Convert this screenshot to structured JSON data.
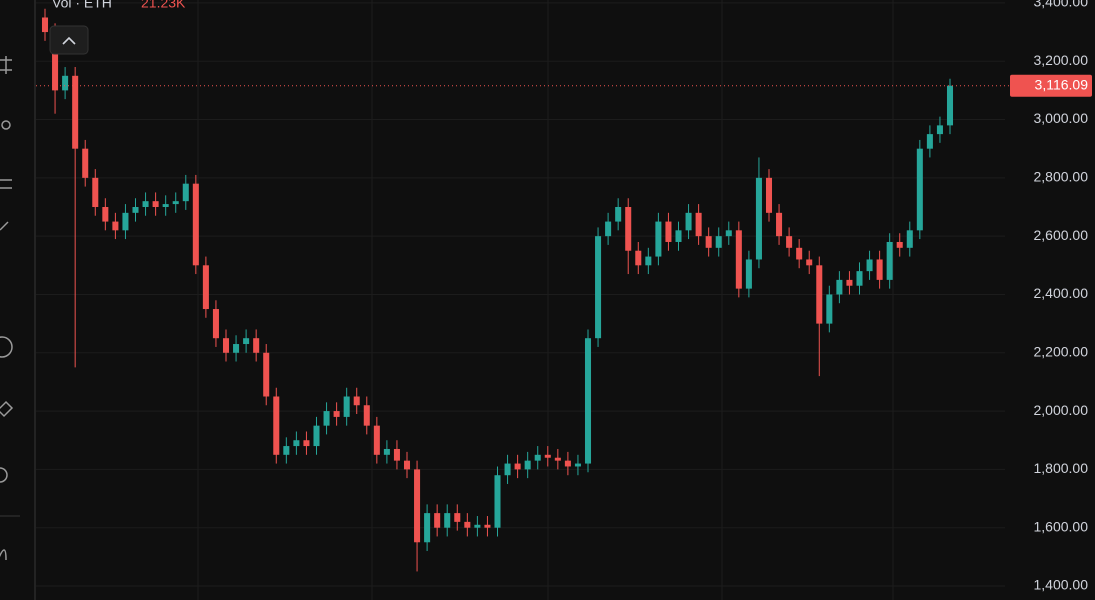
{
  "chart_data": {
    "type": "candlestick",
    "volume_title": "Vol · ETH",
    "volume_value": "21.23K",
    "open": [
      3350,
      3300,
      3100,
      3150,
      2900,
      2800,
      2700,
      2650,
      2620,
      2680,
      2700,
      2720,
      2700,
      2710,
      2720,
      2780,
      2500,
      2350,
      2250,
      2200,
      2230,
      2250,
      2200,
      2050,
      1850,
      1880,
      1900,
      1880,
      1950,
      2000,
      1980,
      2050,
      2020,
      1950,
      1850,
      1870,
      1830,
      1800,
      1550,
      1650,
      1600,
      1650,
      1620,
      1600,
      1610,
      1600,
      1780,
      1820,
      1800,
      1830,
      1850,
      1840,
      1830,
      1810,
      1820,
      2250,
      2600,
      2650,
      2700,
      2550,
      2500,
      2530,
      2650,
      2580,
      2620,
      2680,
      2600,
      2560,
      2600,
      2620,
      2420,
      2520,
      2800,
      2680,
      2600,
      2560,
      2520,
      2500,
      2300,
      2400,
      2450,
      2430,
      2480,
      2520,
      2450,
      2580,
      2560,
      2620,
      2900,
      2950,
      2980
    ],
    "high": [
      3380,
      3330,
      3180,
      3180,
      2930,
      2830,
      2730,
      2680,
      2710,
      2730,
      2750,
      2750,
      2740,
      2750,
      2810,
      2810,
      2530,
      2380,
      2280,
      2260,
      2280,
      2280,
      2230,
      2080,
      1910,
      1930,
      1930,
      1980,
      2030,
      2030,
      2080,
      2080,
      2050,
      1980,
      1900,
      1900,
      1860,
      1830,
      1680,
      1680,
      1680,
      1680,
      1650,
      1640,
      1640,
      1810,
      1850,
      1850,
      1860,
      1880,
      1880,
      1870,
      1860,
      1850,
      2280,
      2630,
      2680,
      2730,
      2730,
      2580,
      2560,
      2680,
      2680,
      2650,
      2710,
      2710,
      2630,
      2630,
      2650,
      2650,
      2550,
      2870,
      2830,
      2710,
      2630,
      2590,
      2550,
      2530,
      2430,
      2480,
      2480,
      2510,
      2550,
      2550,
      2610,
      2610,
      2650,
      2930,
      2980,
      3010,
      3140
    ],
    "low": [
      3270,
      3020,
      3070,
      2150,
      2770,
      2670,
      2620,
      2590,
      2590,
      2650,
      2670,
      2670,
      2670,
      2680,
      2690,
      2470,
      2320,
      2220,
      2170,
      2170,
      2200,
      2170,
      2020,
      1820,
      1820,
      1850,
      1850,
      1850,
      1920,
      1950,
      1950,
      1990,
      1920,
      1820,
      1820,
      1800,
      1770,
      1450,
      1520,
      1570,
      1570,
      1590,
      1570,
      1570,
      1570,
      1570,
      1750,
      1770,
      1770,
      1800,
      1810,
      1800,
      1780,
      1780,
      1790,
      2220,
      2570,
      2620,
      2470,
      2470,
      2470,
      2500,
      2550,
      2550,
      2590,
      2570,
      2530,
      2530,
      2570,
      2390,
      2390,
      2490,
      2650,
      2570,
      2530,
      2490,
      2470,
      2120,
      2270,
      2370,
      2400,
      2400,
      2450,
      2420,
      2420,
      2530,
      2530,
      2590,
      2870,
      2920,
      2950
    ],
    "close": [
      3300,
      3100,
      3150,
      2900,
      2800,
      2700,
      2650,
      2620,
      2680,
      2700,
      2720,
      2700,
      2710,
      2720,
      2780,
      2500,
      2350,
      2250,
      2200,
      2230,
      2250,
      2200,
      2050,
      1850,
      1880,
      1900,
      1880,
      1950,
      2000,
      1980,
      2050,
      2020,
      1950,
      1850,
      1870,
      1830,
      1800,
      1550,
      1650,
      1600,
      1650,
      1620,
      1600,
      1610,
      1600,
      1780,
      1820,
      1800,
      1830,
      1850,
      1840,
      1830,
      1810,
      1820,
      2250,
      2600,
      2650,
      2700,
      2550,
      2500,
      2530,
      2650,
      2580,
      2620,
      2680,
      2600,
      2560,
      2600,
      2620,
      2420,
      2520,
      2800,
      2680,
      2600,
      2560,
      2520,
      2500,
      2300,
      2400,
      2450,
      2430,
      2480,
      2520,
      2450,
      2580,
      2560,
      2620,
      2900,
      2950,
      2980,
      3116.09
    ],
    "last_price_label": "3,116.09",
    "up_color": "#26a69a",
    "down_color": "#ef5350",
    "ylim": [
      1352,
      3410
    ],
    "yticks": [
      {
        "value": 1400,
        "label": "1,400.00"
      },
      {
        "value": 1600,
        "label": "1,600.00"
      },
      {
        "value": 1800,
        "label": "1,800.00"
      },
      {
        "value": 2000,
        "label": "2,000.00"
      },
      {
        "value": 2200,
        "label": "2,200.00"
      },
      {
        "value": 2400,
        "label": "2,400.00"
      },
      {
        "value": 2600,
        "label": "2,600.00"
      },
      {
        "value": 2800,
        "label": "2,800.00"
      },
      {
        "value": 3000,
        "label": "3,000.00"
      },
      {
        "value": 3200,
        "label": "3,200.00"
      },
      {
        "value": 3400,
        "label": "3,400.00"
      }
    ],
    "grid": true
  }
}
